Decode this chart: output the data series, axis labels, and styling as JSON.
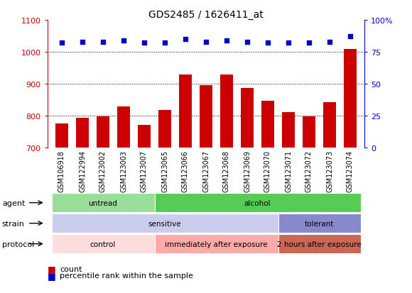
{
  "title": "GDS2485 / 1626411_at",
  "samples": [
    "GSM106918",
    "GSM122994",
    "GSM123002",
    "GSM123003",
    "GSM123007",
    "GSM123065",
    "GSM123066",
    "GSM123067",
    "GSM123068",
    "GSM123069",
    "GSM123070",
    "GSM123071",
    "GSM123072",
    "GSM123073",
    "GSM123074"
  ],
  "bar_values": [
    775,
    793,
    797,
    828,
    771,
    818,
    930,
    896,
    928,
    886,
    847,
    812,
    797,
    843,
    1010
  ],
  "dot_values": [
    82,
    83,
    83,
    84,
    82,
    82,
    85,
    83,
    84,
    83,
    82,
    82,
    82,
    83,
    87
  ],
  "bar_color": "#cc0000",
  "dot_color": "#0000cc",
  "ylim_left": [
    700,
    1100
  ],
  "ylim_right": [
    0,
    100
  ],
  "yticks_left": [
    700,
    800,
    900,
    1000,
    1100
  ],
  "yticks_right": [
    0,
    25,
    50,
    75,
    100
  ],
  "grid_values": [
    800,
    900,
    1000
  ],
  "agent_groups": [
    {
      "label": "untread",
      "start": 0,
      "end": 5,
      "color": "#99dd99"
    },
    {
      "label": "alcohol",
      "start": 5,
      "end": 15,
      "color": "#55cc55"
    }
  ],
  "strain_groups": [
    {
      "label": "sensitive",
      "start": 0,
      "end": 11,
      "color": "#ccccee"
    },
    {
      "label": "tolerant",
      "start": 11,
      "end": 15,
      "color": "#8888cc"
    }
  ],
  "protocol_groups": [
    {
      "label": "control",
      "start": 0,
      "end": 5,
      "color": "#ffdddd"
    },
    {
      "label": "immediately after exposure",
      "start": 5,
      "end": 11,
      "color": "#ffaaaa"
    },
    {
      "label": "2 hours after exposure",
      "start": 11,
      "end": 15,
      "color": "#cc6655"
    }
  ],
  "row_labels": [
    "agent",
    "strain",
    "protocol"
  ],
  "xtick_bg": "#d0d0d0",
  "chart_bg": "#ffffff",
  "title_fontsize": 10
}
